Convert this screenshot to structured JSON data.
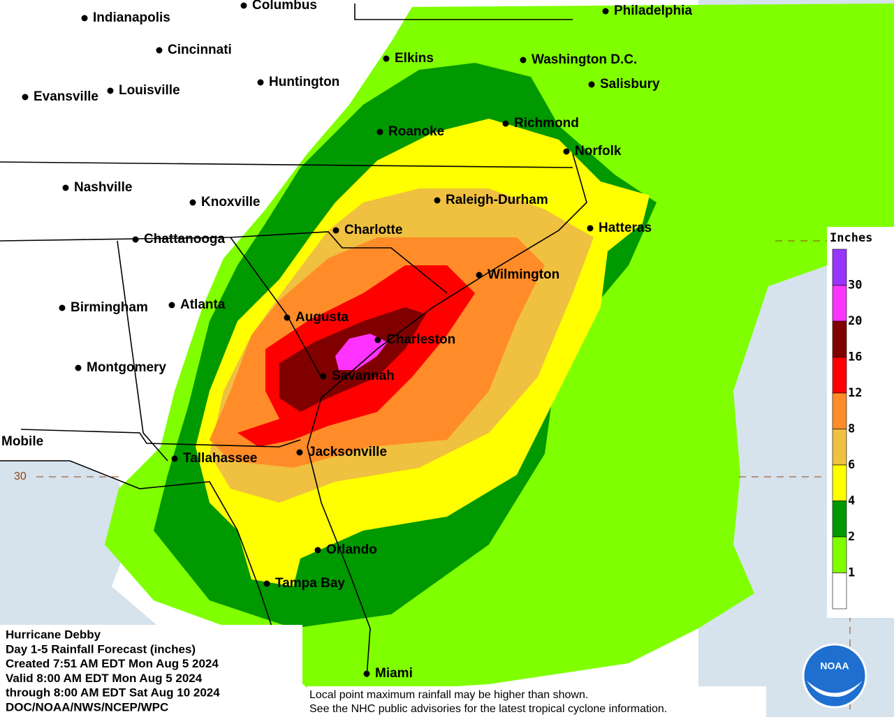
{
  "map": {
    "cities": [
      "Indianapolis",
      "Columbus",
      "Cincinnati",
      "Louisville",
      "Evansville",
      "Huntington",
      "Elkins",
      "Philadelphia",
      "Washington D.C.",
      "Salisbury",
      "Roanoke",
      "Richmond",
      "Norfolk",
      "Nashville",
      "Knoxville",
      "Raleigh-Durham",
      "Hatteras",
      "Charlotte",
      "Chattanooga",
      "Wilmington",
      "Birmingham",
      "Atlanta",
      "Augusta",
      "Charleston",
      "Savannah",
      "Montgomery",
      "Mobile",
      "Tallahassee",
      "Jacksonville",
      "Orlando",
      "Tampa Bay",
      "Miami"
    ],
    "latitude_label": "30"
  },
  "legend": {
    "title": "Inches",
    "colors": [
      "#9933ff",
      "#ff33ff",
      "#800000",
      "#ff0000",
      "#ff8c28",
      "#f0c040",
      "#ffff00",
      "#009900",
      "#80ff00",
      "#ffffff"
    ],
    "labels": [
      "30",
      "20",
      "16",
      "12",
      "8",
      "6",
      "4",
      "2",
      "1"
    ]
  },
  "info": {
    "lines": [
      "Hurricane Debby",
      "Day 1-5 Rainfall Forecast (inches)",
      "Created 7:51 AM EDT Mon Aug 5 2024",
      "Valid 8:00 AM EDT Mon Aug 5 2024",
      "through 8:00 AM EDT Sat Aug 10 2024",
      "DOC/NOAA/NWS/NCEP/WPC"
    ]
  },
  "note": {
    "lines": [
      "Local point maximum rainfall may be higher than shown.",
      "See the NHC public advisories for the latest tropical cyclone information."
    ]
  },
  "logo": "NOAA"
}
